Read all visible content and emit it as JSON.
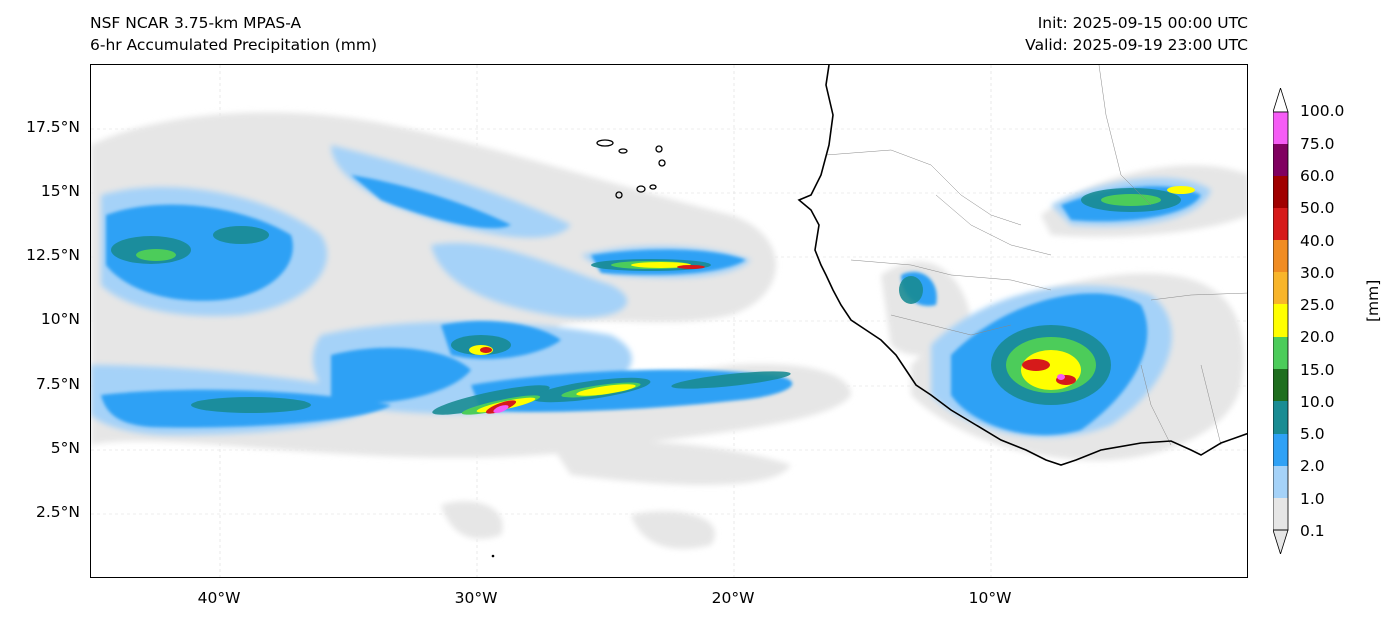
{
  "header": {
    "model": "NSF NCAR 3.75-km MPAS-A",
    "field": "6-hr Accumulated Precipitation (mm)",
    "init": "Init: 2025-09-15 00:00 UTC",
    "valid": "Valid: 2025-09-19 23:00 UTC"
  },
  "map": {
    "lat_labels": [
      "17.5°N",
      "15°N",
      "12.5°N",
      "10°N",
      "7.5°N",
      "5°N",
      "2.5°N"
    ],
    "lon_labels": [
      "40°W",
      "30°W",
      "20°W",
      "10°W"
    ],
    "extent": {
      "lon_min": -45,
      "lon_max": 0,
      "lat_min": 0,
      "lat_max": 20
    }
  },
  "colorbar": {
    "units": "[mm]",
    "levels": [
      {
        "label": "0.1",
        "color": "#e6e6e6"
      },
      {
        "label": "1.0",
        "color": "#a5d2f8"
      },
      {
        "label": "2.0",
        "color": "#2fa1f5"
      },
      {
        "label": "5.0",
        "color": "#1a8c93"
      },
      {
        "label": "10.0",
        "color": "#1f6e1f"
      },
      {
        "label": "15.0",
        "color": "#4ccc5a"
      },
      {
        "label": "20.0",
        "color": "#ffff00"
      },
      {
        "label": "25.0",
        "color": "#f8b52a"
      },
      {
        "label": "30.0",
        "color": "#f08c22"
      },
      {
        "label": "40.0",
        "color": "#d61a1a"
      },
      {
        "label": "50.0",
        "color": "#a00000"
      },
      {
        "label": "60.0",
        "color": "#800060"
      },
      {
        "label": "75.0",
        "color": "#f55cf5"
      },
      {
        "label": "100.0",
        "color": ""
      }
    ]
  }
}
